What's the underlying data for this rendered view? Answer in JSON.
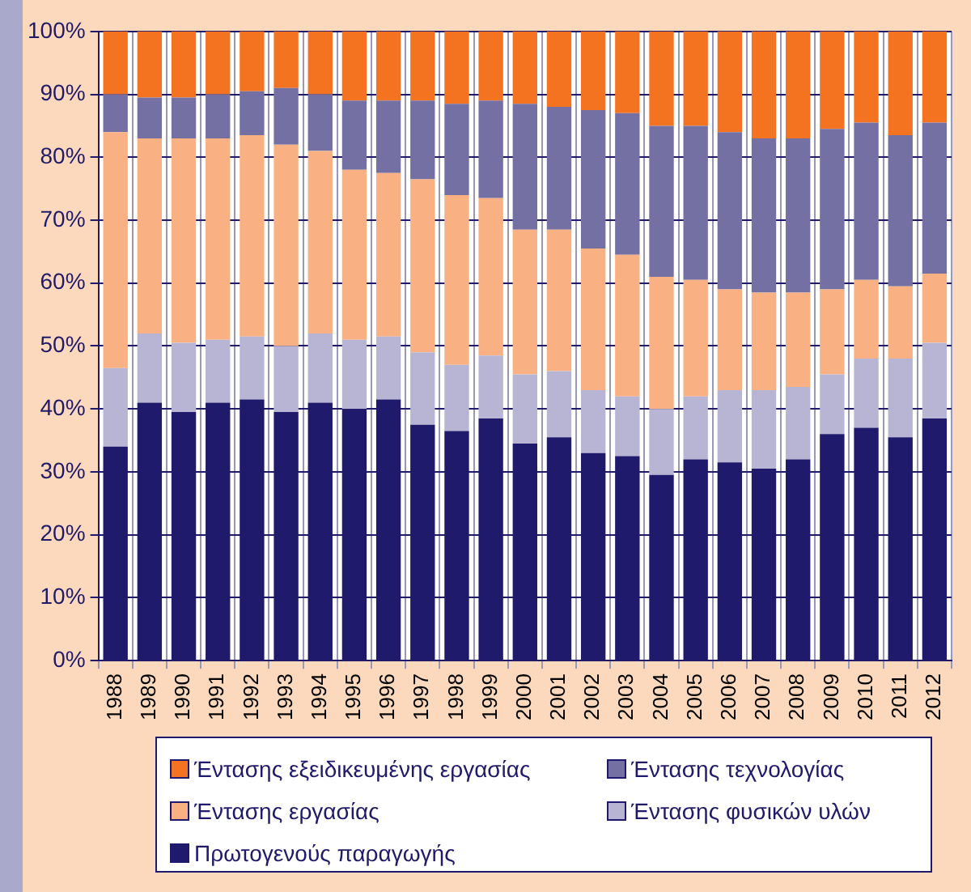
{
  "chart_data": {
    "type": "bar",
    "stacked": true,
    "categories": [
      "1988",
      "1989",
      "1990",
      "1991",
      "1992",
      "1993",
      "1994",
      "1995",
      "1996",
      "1997",
      "1998",
      "1999",
      "2000",
      "2001",
      "2002",
      "2003",
      "2004",
      "2005",
      "2006",
      "2007",
      "2008",
      "2009",
      "2010",
      "2011",
      "2012"
    ],
    "series": [
      {
        "name": "Πρωτογενούς παραγωγής",
        "color": "#1f1a6b",
        "values": [
          34,
          41,
          39.5,
          41,
          41.5,
          39.5,
          41,
          40,
          41.5,
          37.5,
          36.5,
          38.5,
          34.5,
          35.5,
          33,
          32.5,
          29.5,
          32,
          31.5,
          30.5,
          32,
          36,
          37,
          35.5,
          38.5
        ]
      },
      {
        "name": "Έντασης φυσικών υλών",
        "color": "#b8b5d4",
        "values": [
          12.5,
          11,
          11,
          10,
          10,
          10.5,
          11,
          11,
          10,
          11.5,
          10.5,
          10,
          11,
          10.5,
          10,
          9.5,
          10.5,
          10,
          11.5,
          12.5,
          11.5,
          9.5,
          11,
          12.5,
          12
        ]
      },
      {
        "name": "Έντασης εργασίας",
        "color": "#f9b183",
        "values": [
          37.5,
          31,
          32.5,
          32,
          32,
          32,
          29,
          27,
          26,
          27.5,
          27,
          25,
          23,
          22.5,
          22.5,
          22.5,
          21,
          18.5,
          16,
          15.5,
          15,
          13.5,
          12.5,
          11.5,
          11
        ]
      },
      {
        "name": "Έντασης τεχνολογίας",
        "color": "#7570a3",
        "values": [
          6,
          6.5,
          6.5,
          7,
          7,
          9,
          9,
          11,
          11.5,
          12.5,
          14.5,
          15.5,
          20,
          19.5,
          22,
          22.5,
          24,
          24.5,
          25,
          24.5,
          24.5,
          25.5,
          25,
          24,
          24
        ]
      },
      {
        "name": "Έντασης εξειδικευμένης εργασίας",
        "color": "#f47321",
        "values": [
          10,
          10.5,
          10.5,
          10,
          9.5,
          9,
          10,
          11,
          11,
          11,
          11.5,
          11,
          11.5,
          12,
          12.5,
          13,
          15,
          15,
          16,
          17,
          17,
          15.5,
          14.5,
          16.5,
          14.5
        ]
      }
    ],
    "ylim": [
      0,
      100
    ],
    "yticks": [
      {
        "value": 0,
        "label": "0%"
      },
      {
        "value": 10,
        "label": "10%"
      },
      {
        "value": 20,
        "label": "20%"
      },
      {
        "value": 30,
        "label": "30%"
      },
      {
        "value": 40,
        "label": "40%"
      },
      {
        "value": 50,
        "label": "50%"
      },
      {
        "value": 60,
        "label": "60%"
      },
      {
        "value": 70,
        "label": "70%"
      },
      {
        "value": 80,
        "label": "80%"
      },
      {
        "value": 90,
        "label": "90%"
      },
      {
        "value": 100,
        "label": "100%"
      }
    ],
    "grid": true,
    "legend": "bottom"
  }
}
